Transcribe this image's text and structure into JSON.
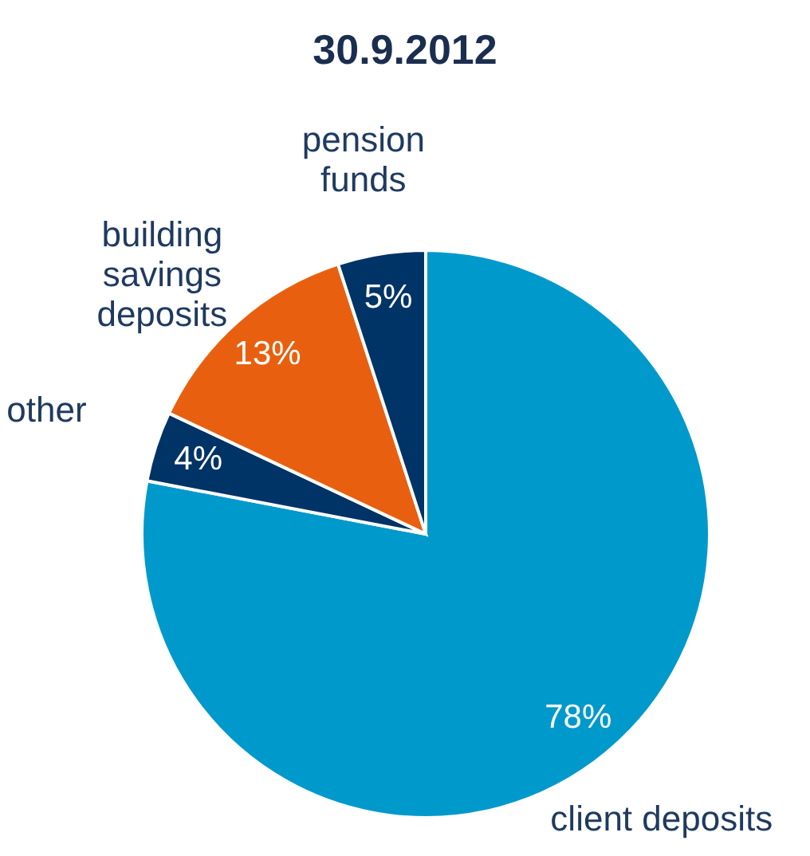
{
  "chart_data": {
    "type": "pie",
    "title": "30.9.2012",
    "categories": [
      "client deposits",
      "other",
      "building savings deposits",
      "pension funds"
    ],
    "values": [
      78,
      4,
      13,
      5
    ],
    "colors": [
      "#0099cc",
      "#003366",
      "#e8600f",
      "#003366"
    ],
    "value_labels": [
      "78%",
      "4%",
      "13%",
      "5%"
    ],
    "legend": false
  }
}
